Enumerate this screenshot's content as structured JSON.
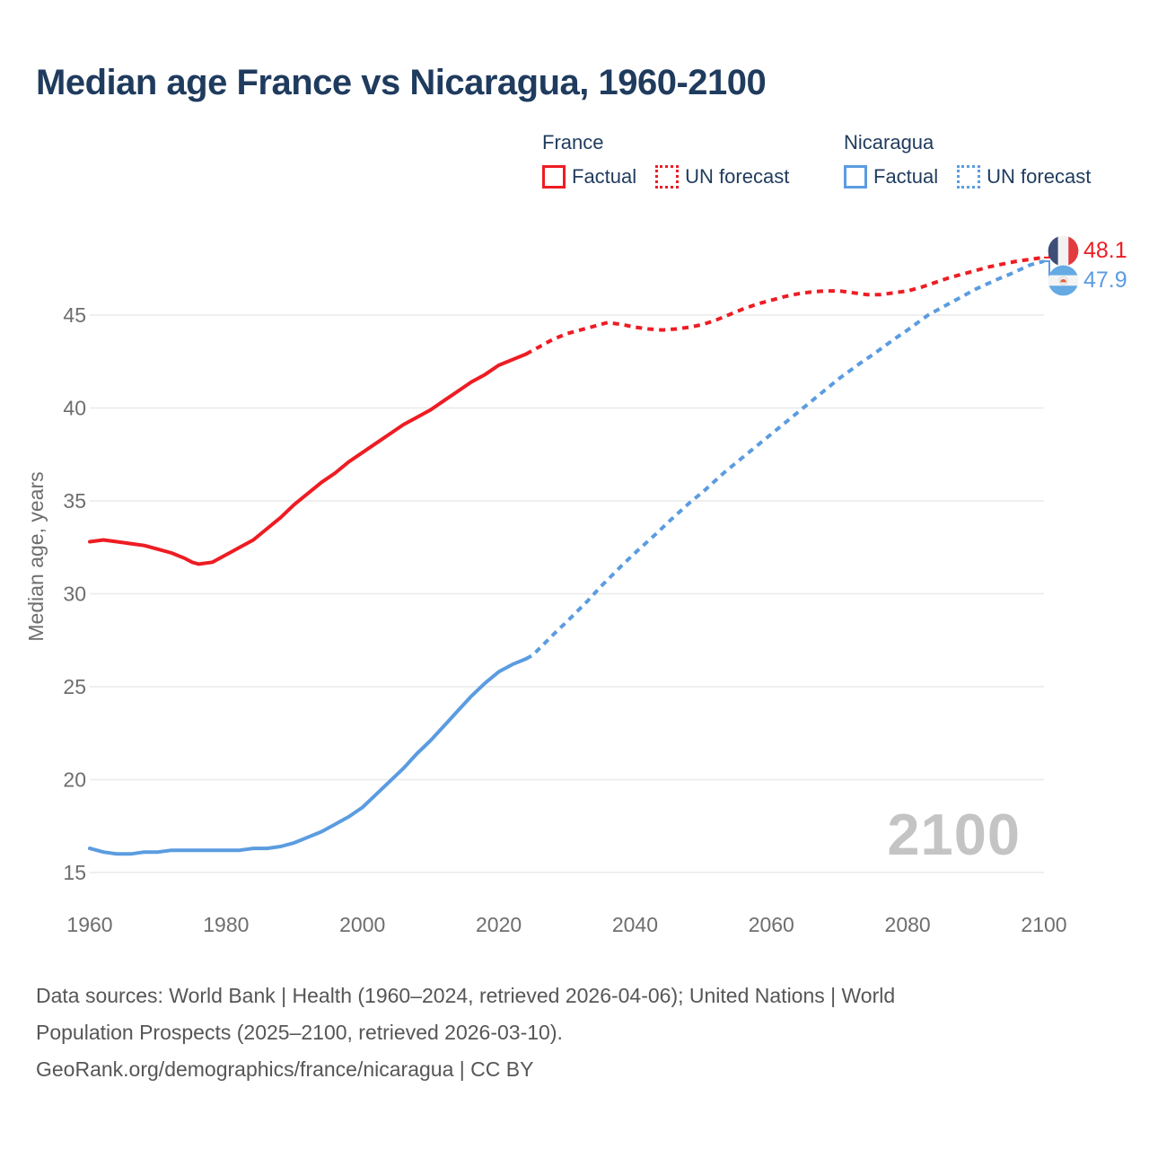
{
  "title": "Median age France vs Nicaragua, 1960-2100",
  "legend": {
    "groups": [
      {
        "name": "France",
        "items": [
          {
            "label": "Factual",
            "style": "solid",
            "color": "#ee1c23"
          },
          {
            "label": "UN forecast",
            "style": "dotted",
            "color": "#ee1c23"
          }
        ]
      },
      {
        "name": "Nicaragua",
        "items": [
          {
            "label": "Factual",
            "style": "solid",
            "color": "#5b9ce0"
          },
          {
            "label": "UN forecast",
            "style": "dotted",
            "color": "#5b9ce0"
          }
        ]
      }
    ]
  },
  "end_labels": [
    {
      "country": "France",
      "value": "48.1",
      "flag": "france-flag"
    },
    {
      "country": "Nicaragua",
      "value": "47.9",
      "flag": "nicaragua-flag"
    }
  ],
  "watermark": "2100",
  "footer": {
    "lines": [
      "Data sources: World Bank | Health (1960–2024, retrieved 2026-04-06); United Nations | World",
      "Population Prospects (2025–2100, retrieved 2026-03-10).",
      "GeoRank.org/demographics/france/nicaragua | CC BY"
    ]
  },
  "colors": {
    "france": "#ee1c23",
    "nicaragua": "#5b9ce0",
    "navy": "#1f3b5e",
    "axis_text": "#6e6e6e",
    "grid": "#eaeaea",
    "watermark": "#c4c4c4",
    "footer_text": "#565656"
  },
  "chart_data": {
    "type": "line",
    "title": "Median age France vs Nicaragua, 1960-2100",
    "xlabel": "",
    "ylabel": "Median age, years",
    "xlim": [
      1960,
      2100
    ],
    "ylim": [
      14,
      49
    ],
    "y_ticks": [
      15,
      20,
      25,
      30,
      35,
      40,
      45
    ],
    "x_ticks": [
      1960,
      1980,
      2000,
      2020,
      2040,
      2060,
      2080,
      2100
    ],
    "grid": true,
    "legend_position": "top",
    "series": [
      {
        "name": "France Factual",
        "country": "France",
        "style": "solid",
        "color": "#ee1c23",
        "points": [
          [
            1960,
            32.8
          ],
          [
            1962,
            32.9
          ],
          [
            1964,
            32.8
          ],
          [
            1966,
            32.7
          ],
          [
            1968,
            32.6
          ],
          [
            1970,
            32.4
          ],
          [
            1972,
            32.2
          ],
          [
            1974,
            31.9
          ],
          [
            1975,
            31.7
          ],
          [
            1976,
            31.6
          ],
          [
            1978,
            31.7
          ],
          [
            1980,
            32.1
          ],
          [
            1982,
            32.5
          ],
          [
            1984,
            32.9
          ],
          [
            1986,
            33.5
          ],
          [
            1988,
            34.1
          ],
          [
            1990,
            34.8
          ],
          [
            1992,
            35.4
          ],
          [
            1994,
            36.0
          ],
          [
            1996,
            36.5
          ],
          [
            1998,
            37.1
          ],
          [
            2000,
            37.6
          ],
          [
            2002,
            38.1
          ],
          [
            2004,
            38.6
          ],
          [
            2006,
            39.1
          ],
          [
            2008,
            39.5
          ],
          [
            2010,
            39.9
          ],
          [
            2012,
            40.4
          ],
          [
            2014,
            40.9
          ],
          [
            2016,
            41.4
          ],
          [
            2018,
            41.8
          ],
          [
            2020,
            42.3
          ],
          [
            2022,
            42.6
          ],
          [
            2024,
            42.9
          ]
        ]
      },
      {
        "name": "France UN forecast",
        "country": "France",
        "style": "dashed",
        "color": "#ee1c23",
        "points": [
          [
            2025,
            43.1
          ],
          [
            2026,
            43.3
          ],
          [
            2028,
            43.7
          ],
          [
            2030,
            44.0
          ],
          [
            2032,
            44.2
          ],
          [
            2034,
            44.4
          ],
          [
            2036,
            44.6
          ],
          [
            2038,
            44.5
          ],
          [
            2040,
            44.35
          ],
          [
            2042,
            44.25
          ],
          [
            2044,
            44.2
          ],
          [
            2046,
            44.25
          ],
          [
            2048,
            44.35
          ],
          [
            2050,
            44.5
          ],
          [
            2052,
            44.75
          ],
          [
            2054,
            45.05
          ],
          [
            2056,
            45.35
          ],
          [
            2058,
            45.6
          ],
          [
            2060,
            45.8
          ],
          [
            2062,
            46.0
          ],
          [
            2064,
            46.15
          ],
          [
            2066,
            46.25
          ],
          [
            2068,
            46.3
          ],
          [
            2070,
            46.3
          ],
          [
            2072,
            46.2
          ],
          [
            2074,
            46.1
          ],
          [
            2076,
            46.1
          ],
          [
            2078,
            46.2
          ],
          [
            2080,
            46.3
          ],
          [
            2082,
            46.5
          ],
          [
            2084,
            46.75
          ],
          [
            2086,
            47.0
          ],
          [
            2088,
            47.2
          ],
          [
            2090,
            47.4
          ],
          [
            2092,
            47.6
          ],
          [
            2094,
            47.75
          ],
          [
            2096,
            47.9
          ],
          [
            2098,
            48.0
          ],
          [
            2100,
            48.1
          ]
        ]
      },
      {
        "name": "Nicaragua Factual",
        "country": "Nicaragua",
        "style": "solid",
        "color": "#5b9ce0",
        "points": [
          [
            1960,
            16.3
          ],
          [
            1962,
            16.1
          ],
          [
            1964,
            16.0
          ],
          [
            1966,
            16.0
          ],
          [
            1968,
            16.1
          ],
          [
            1970,
            16.1
          ],
          [
            1972,
            16.2
          ],
          [
            1974,
            16.2
          ],
          [
            1976,
            16.2
          ],
          [
            1978,
            16.2
          ],
          [
            1980,
            16.2
          ],
          [
            1982,
            16.2
          ],
          [
            1984,
            16.3
          ],
          [
            1986,
            16.3
          ],
          [
            1988,
            16.4
          ],
          [
            1990,
            16.6
          ],
          [
            1992,
            16.9
          ],
          [
            1994,
            17.2
          ],
          [
            1996,
            17.6
          ],
          [
            1998,
            18.0
          ],
          [
            2000,
            18.5
          ],
          [
            2002,
            19.2
          ],
          [
            2004,
            19.9
          ],
          [
            2006,
            20.6
          ],
          [
            2008,
            21.4
          ],
          [
            2010,
            22.1
          ],
          [
            2012,
            22.9
          ],
          [
            2014,
            23.7
          ],
          [
            2016,
            24.5
          ],
          [
            2018,
            25.2
          ],
          [
            2020,
            25.8
          ],
          [
            2022,
            26.2
          ],
          [
            2024,
            26.5
          ]
        ]
      },
      {
        "name": "Nicaragua UN forecast",
        "country": "Nicaragua",
        "style": "dashed",
        "color": "#5b9ce0",
        "points": [
          [
            2025,
            26.7
          ],
          [
            2028,
            27.8
          ],
          [
            2030,
            28.5
          ],
          [
            2033,
            29.6
          ],
          [
            2035,
            30.4
          ],
          [
            2038,
            31.5
          ],
          [
            2040,
            32.2
          ],
          [
            2043,
            33.2
          ],
          [
            2045,
            33.9
          ],
          [
            2048,
            34.9
          ],
          [
            2050,
            35.5
          ],
          [
            2053,
            36.5
          ],
          [
            2055,
            37.1
          ],
          [
            2058,
            38.0
          ],
          [
            2060,
            38.6
          ],
          [
            2063,
            39.5
          ],
          [
            2065,
            40.1
          ],
          [
            2068,
            41.0
          ],
          [
            2070,
            41.6
          ],
          [
            2073,
            42.4
          ],
          [
            2075,
            42.9
          ],
          [
            2078,
            43.7
          ],
          [
            2080,
            44.2
          ],
          [
            2083,
            45.0
          ],
          [
            2085,
            45.4
          ],
          [
            2088,
            46.0
          ],
          [
            2090,
            46.4
          ],
          [
            2093,
            46.9
          ],
          [
            2095,
            47.2
          ],
          [
            2098,
            47.7
          ],
          [
            2100,
            47.9
          ]
        ]
      }
    ],
    "end_values": {
      "France": 48.1,
      "Nicaragua": 47.9
    }
  }
}
